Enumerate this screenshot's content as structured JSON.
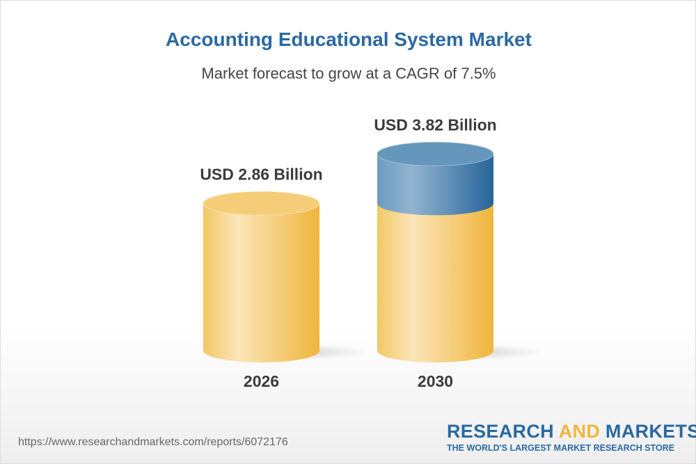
{
  "title": "Accounting Educational System Market",
  "subtitle": "Market forecast to grow at a CAGR of 7.5%",
  "chart_data": {
    "type": "bar",
    "style": "3d-cylinder",
    "categories": [
      "2026",
      "2030"
    ],
    "values": [
      2.86,
      3.82
    ],
    "data_labels": [
      "USD 2.86 Billion",
      "USD 3.82 Billion"
    ],
    "unit": "USD Billion",
    "cagr": "7.5%",
    "colors": {
      "base": "#f2c45e",
      "growth": "#2a69a2"
    }
  },
  "footer": {
    "url": "https://www.researchandmarkets.com/reports/6072176",
    "logo_word1": "RESEARCH ",
    "logo_word2": "AND",
    "logo_word3": " MARKETS",
    "tagline": "THE WORLD'S LARGEST MARKET RESEARCH STORE"
  }
}
